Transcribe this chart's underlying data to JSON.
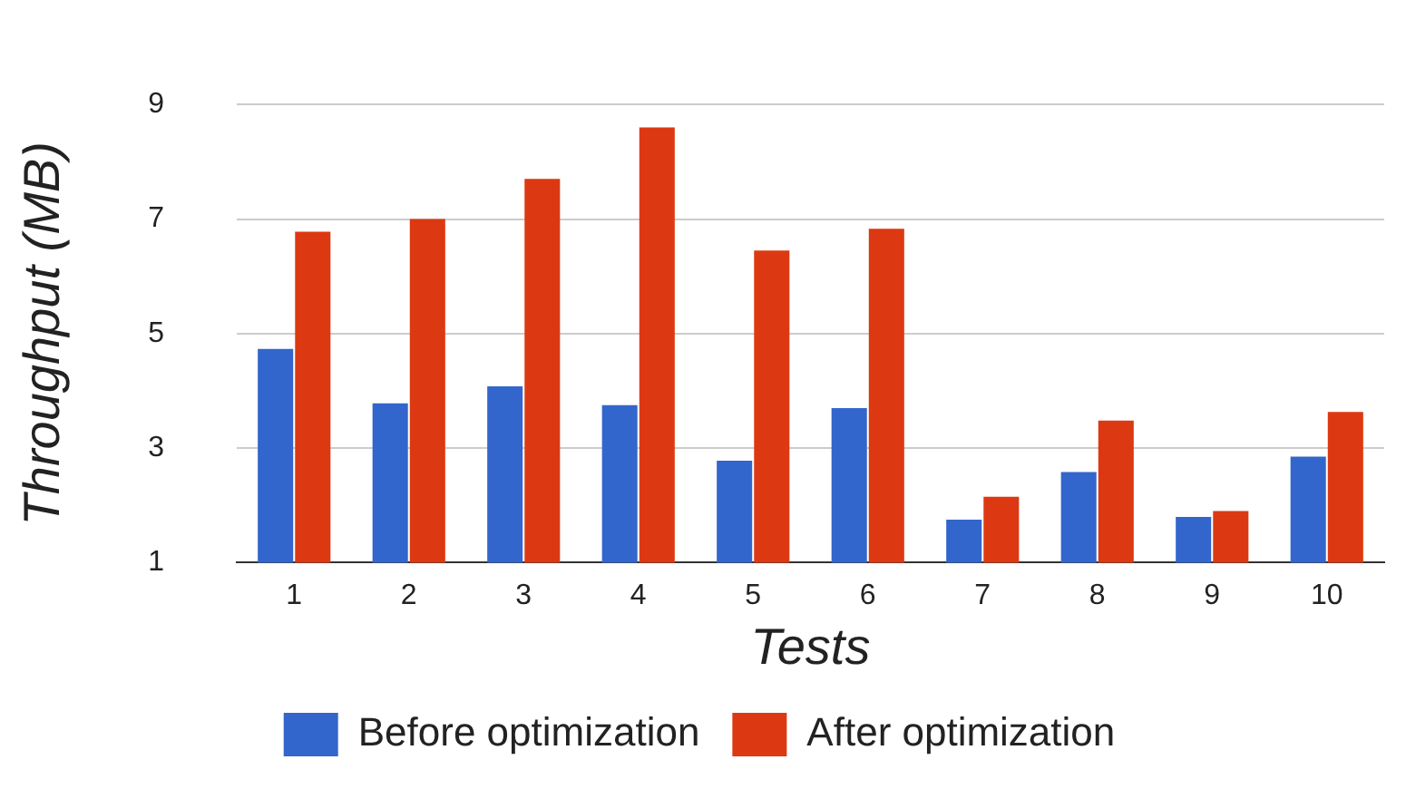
{
  "chart_data": {
    "type": "bar",
    "xlabel": "Tests",
    "ylabel": "Throughput (MB)",
    "categories": [
      "1",
      "2",
      "3",
      "4",
      "5",
      "6",
      "7",
      "8",
      "9",
      "10"
    ],
    "series": [
      {
        "name": "Before optimization",
        "color": "#3366cc",
        "values": [
          4.73,
          3.78,
          4.08,
          3.75,
          2.78,
          3.7,
          1.75,
          2.58,
          1.8,
          2.85
        ]
      },
      {
        "name": "After optimization",
        "color": "#dc3912",
        "values": [
          6.78,
          7.0,
          7.7,
          8.6,
          6.45,
          6.83,
          2.15,
          3.48,
          1.9,
          3.63
        ]
      }
    ],
    "ylim": [
      1,
      9
    ],
    "yticks": [
      1,
      3,
      5,
      7,
      9
    ],
    "grid": "y",
    "legend": "bottom"
  }
}
